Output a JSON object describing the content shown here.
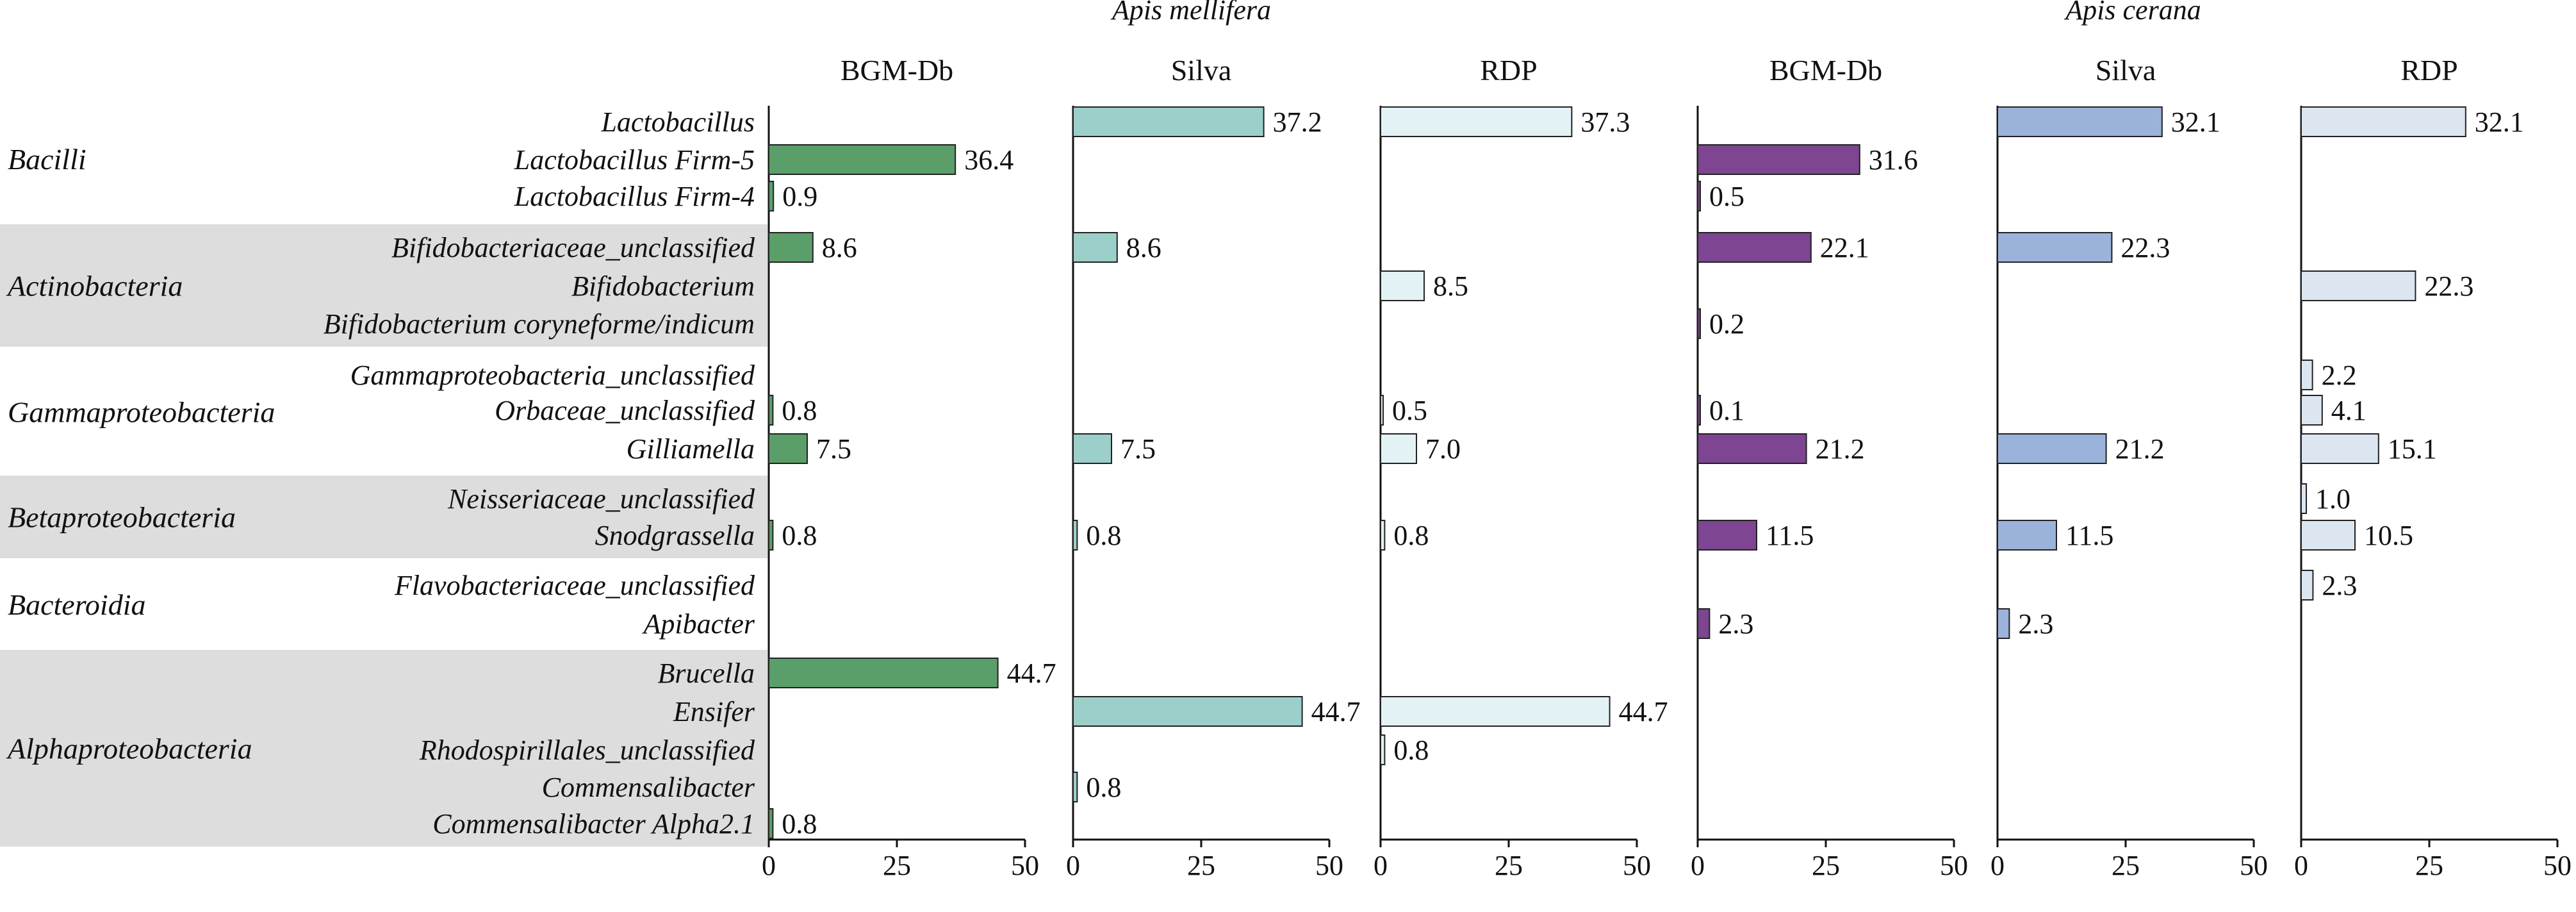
{
  "chart_data": {
    "type": "bar",
    "orientation": "horizontal",
    "xlim": [
      0,
      50
    ],
    "xticks": [
      0,
      25,
      50
    ],
    "groups": [
      {
        "name": "Apis mellifera",
        "panels": [
          "BGM-Db",
          "Silva",
          "RDP"
        ]
      },
      {
        "name": "Apis cerana",
        "panels": [
          "BGM-Db",
          "Silva",
          "RDP"
        ]
      }
    ],
    "classes": [
      {
        "name": "Bacilli",
        "shaded": false
      },
      {
        "name": "Actinobacteria",
        "shaded": true
      },
      {
        "name": "Gammaproteobacteria",
        "shaded": false
      },
      {
        "name": "Betaproteobacteria",
        "shaded": true
      },
      {
        "name": "Bacteroidia",
        "shaded": false
      },
      {
        "name": "Alphaproteobacteria",
        "shaded": true
      }
    ],
    "taxa": [
      {
        "label": "Lactobacillus",
        "cls": "Bacilli"
      },
      {
        "label": "Lactobacillus Firm-5",
        "cls": "Bacilli"
      },
      {
        "label": "Lactobacillus Firm-4",
        "cls": "Bacilli"
      },
      {
        "label": "Bifidobacteriaceae_unclassified",
        "cls": "Actinobacteria"
      },
      {
        "label": "Bifidobacterium",
        "cls": "Actinobacteria"
      },
      {
        "label": "Bifidobacterium coryneforme/indicum",
        "cls": "Actinobacteria"
      },
      {
        "label": "Gammaproteobacteria_unclassified",
        "cls": "Gammaproteobacteria"
      },
      {
        "label": "Orbaceae_unclassified",
        "cls": "Gammaproteobacteria"
      },
      {
        "label": "Gilliamella",
        "cls": "Gammaproteobacteria"
      },
      {
        "label": "Neisseriaceae_unclassified",
        "cls": "Betaproteobacteria"
      },
      {
        "label": "Snodgrassella",
        "cls": "Betaproteobacteria"
      },
      {
        "label": "Flavobacteriaceae_unclassified",
        "cls": "Bacteroidia"
      },
      {
        "label": "Apibacter",
        "cls": "Bacteroidia"
      },
      {
        "label": "Brucella",
        "cls": "Alphaproteobacteria"
      },
      {
        "label": "Ensifer",
        "cls": "Alphaproteobacteria"
      },
      {
        "label": "Rhodospirillales_unclassified",
        "cls": "Alphaproteobacteria"
      },
      {
        "label": "Commensalibacter",
        "cls": "Alphaproteobacteria"
      },
      {
        "label": "Commensalibacter Alpha2.1",
        "cls": "Alphaproteobacteria"
      }
    ],
    "series": [
      {
        "group": "Apis mellifera",
        "name": "BGM-Db",
        "color": "#5a9e6a",
        "values": [
          null,
          36.4,
          0.9,
          8.6,
          null,
          null,
          null,
          0.8,
          7.5,
          null,
          0.8,
          null,
          null,
          44.7,
          null,
          null,
          null,
          0.8
        ]
      },
      {
        "group": "Apis mellifera",
        "name": "Silva",
        "color": "#9ccfc9",
        "values": [
          37.2,
          null,
          null,
          8.6,
          null,
          null,
          null,
          null,
          7.5,
          null,
          0.8,
          null,
          null,
          null,
          44.7,
          null,
          0.8,
          null
        ]
      },
      {
        "group": "Apis mellifera",
        "name": "RDP",
        "color": "#e3f2f5",
        "values": [
          37.3,
          null,
          null,
          null,
          8.5,
          null,
          null,
          0.5,
          7.0,
          null,
          0.8,
          null,
          null,
          null,
          44.7,
          0.8,
          null,
          null
        ]
      },
      {
        "group": "Apis cerana",
        "name": "BGM-Db",
        "color": "#7d4592",
        "values": [
          null,
          31.6,
          0.5,
          22.1,
          null,
          0.2,
          null,
          0.1,
          21.2,
          null,
          11.5,
          null,
          2.3,
          null,
          null,
          null,
          null,
          null
        ]
      },
      {
        "group": "Apis cerana",
        "name": "Silva",
        "color": "#9bb3da",
        "values": [
          32.1,
          null,
          null,
          22.3,
          null,
          null,
          null,
          null,
          21.2,
          null,
          11.5,
          null,
          2.3,
          null,
          null,
          null,
          null,
          null
        ]
      },
      {
        "group": "Apis cerana",
        "name": "RDP",
        "color": "#dce6f1",
        "values": [
          32.1,
          null,
          null,
          null,
          22.3,
          null,
          2.2,
          4.1,
          15.1,
          1.0,
          10.5,
          2.3,
          null,
          null,
          null,
          null,
          null,
          null
        ]
      }
    ]
  }
}
